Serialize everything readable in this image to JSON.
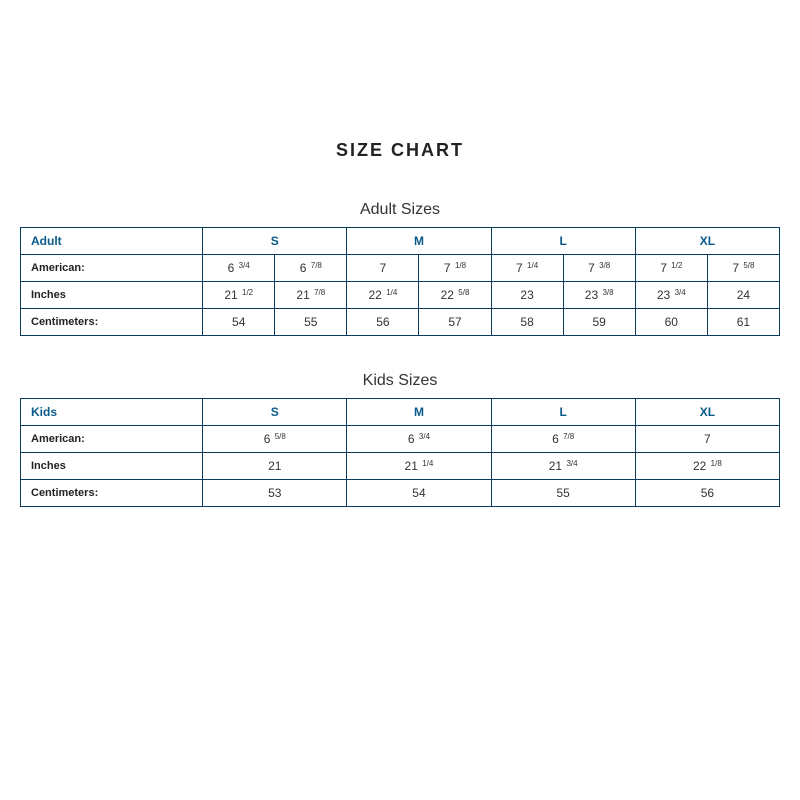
{
  "title": "SIZE CHART",
  "adult": {
    "section_title": "Adult Sizes",
    "header_label": "Adult",
    "size_cols": [
      "S",
      "M",
      "L",
      "XL"
    ],
    "rows": [
      {
        "label": "American:",
        "cells": [
          "6 ¾",
          "6 ⅞",
          "7",
          "7 ⅛",
          "7 ¼",
          "7 ⅜",
          "7 ½",
          "7 ⅝"
        ]
      },
      {
        "label": "Inches",
        "cells": [
          "21 ½",
          "21 ⅞",
          "22 ¼",
          "22 ⅝",
          "23",
          "23 ⅜",
          "23 ¾",
          "24"
        ]
      },
      {
        "label": "Centimeters:",
        "cells": [
          "54",
          "55",
          "56",
          "57",
          "58",
          "59",
          "60",
          "61"
        ]
      }
    ],
    "col_widths": {
      "label": "24%",
      "size": "19%",
      "sub": "9.5%"
    }
  },
  "kids": {
    "section_title": "Kids Sizes",
    "header_label": "Kids",
    "size_cols": [
      "S",
      "M",
      "L",
      "XL"
    ],
    "rows": [
      {
        "label": "American:",
        "cells": [
          "6 ⅝",
          "6 ¾",
          "6 ⅞",
          "7"
        ]
      },
      {
        "label": "Inches",
        "cells": [
          "21",
          "21 ¼",
          "21 ¾",
          "22 ⅛"
        ]
      },
      {
        "label": "Centimeters:",
        "cells": [
          "53",
          "54",
          "55",
          "56"
        ]
      }
    ],
    "col_widths": {
      "label": "24%",
      "size": "19%"
    }
  },
  "styling": {
    "border_color": "#0a3a5c",
    "header_text_color": "#0a5a8c",
    "background": "#ffffff",
    "title_fontsize": 18,
    "section_fontsize": 16,
    "cell_fontsize": 12,
    "label_fontsize": 11,
    "frac_fontsize": 8
  }
}
